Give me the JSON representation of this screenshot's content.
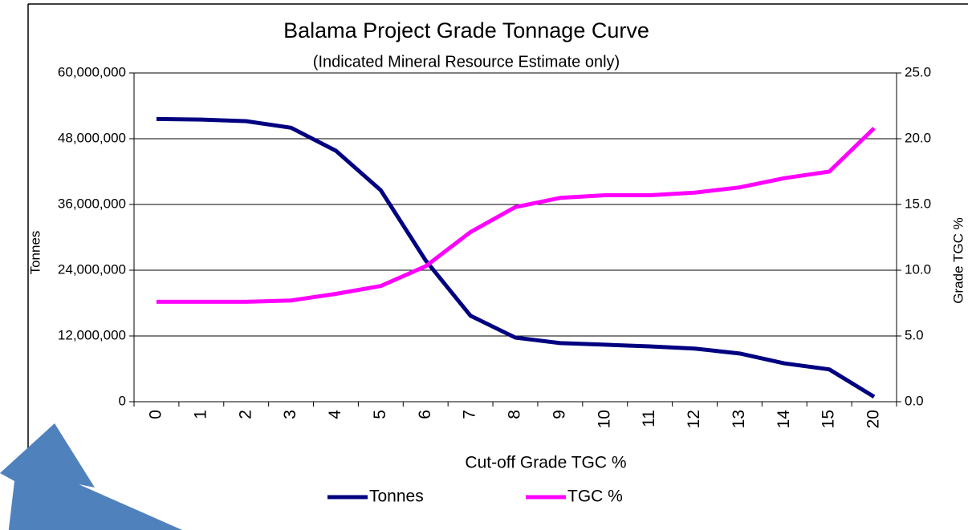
{
  "chart_data": {
    "type": "line",
    "title": "Balama Project Grade Tonnage Curve",
    "subtitle": "(Indicated Mineral Resource Estimate only)",
    "x_label": "Cut-off Grade TGC %",
    "y_label": "Tonnes",
    "y2_label": "Grade TGC %",
    "categories": [
      "0",
      "1",
      "2",
      "3",
      "4",
      "5",
      "6",
      "7",
      "8",
      "9",
      "10",
      "11",
      "12",
      "13",
      "14",
      "15",
      "20"
    ],
    "series": [
      {
        "name": "Tonnes",
        "color": "#000080",
        "values": [
          51600000,
          51500000,
          51200000,
          50000000,
          45800000,
          38600000,
          25800000,
          15700000,
          11700000,
          10700000,
          10400000,
          10100000,
          9700000,
          8800000,
          7000000,
          5900000,
          900000
        ]
      },
      {
        "name": "TGC %",
        "color": "#ff00ff",
        "axis": "y2",
        "values": [
          7.6,
          7.6,
          7.6,
          7.7,
          8.2,
          8.8,
          10.3,
          12.9,
          14.8,
          15.5,
          15.7,
          15.7,
          15.9,
          16.3,
          17.0,
          17.5,
          20.8
        ]
      }
    ],
    "ylim": [
      0,
      60000000
    ],
    "yticks": [
      0,
      {
        "value": 12000000,
        "label": "12,000,000"
      },
      {
        "value": 24000000,
        "label": "24,000,000"
      },
      {
        "value": 36000000,
        "label": "36,000,000"
      },
      {
        "value": 48000000,
        "label": "48,000,000"
      },
      {
        "value": 60000000,
        "label": "60,000,000"
      }
    ],
    "y2lim": [
      0,
      25
    ],
    "y2ticks": [
      {
        "value": 0,
        "label": "0.0"
      },
      {
        "value": 5,
        "label": "5.0"
      },
      {
        "value": 10,
        "label": "10.0"
      },
      {
        "value": 15,
        "label": "15.0"
      },
      {
        "value": 20,
        "label": "20.0"
      },
      {
        "value": 25,
        "label": "25.0"
      }
    ],
    "grid": true,
    "legend": "bottom"
  }
}
